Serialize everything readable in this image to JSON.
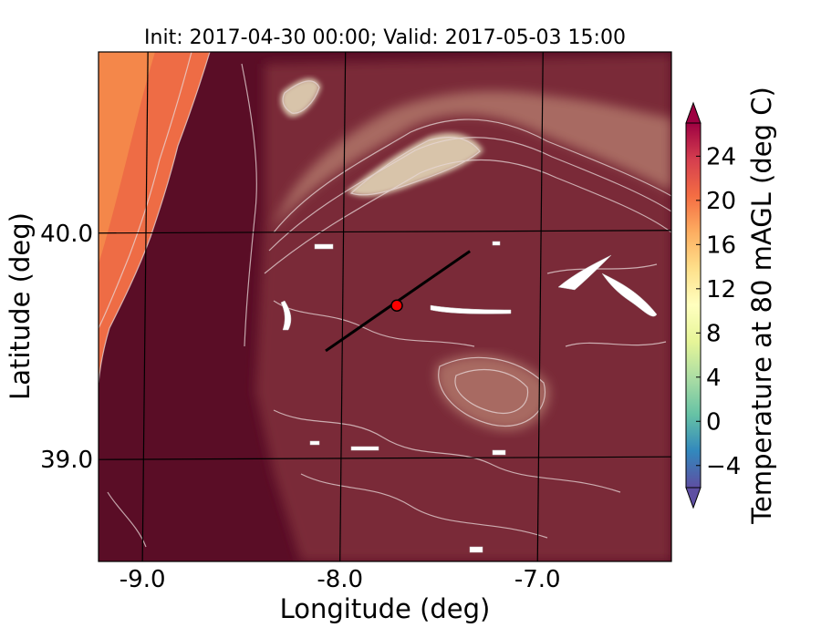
{
  "chart_data": {
    "type": "heatmap",
    "title": "Init: 2017-04-30 00:00; Valid: 2017-05-03 15:00",
    "xlabel": "Longitude (deg)",
    "ylabel": "Latitude (deg)",
    "xlim": [
      -9.25,
      -6.35
    ],
    "ylim": [
      38.55,
      40.8
    ],
    "x_ticks": [
      -9.0,
      -8.0,
      -7.0
    ],
    "x_tick_labels": [
      "-9.0",
      "-8.0",
      "-7.0"
    ],
    "y_ticks": [
      39.0,
      40.0
    ],
    "y_tick_labels": [
      "39.0",
      "40.0"
    ],
    "grid": true,
    "colorbar": {
      "label": "Temperature at 80 mAGL (deg C)",
      "range": [
        -6,
        27
      ],
      "ticks": [
        -4,
        0,
        4,
        8,
        12,
        16,
        20,
        24
      ],
      "tick_labels": [
        "−4",
        "0",
        "4",
        "8",
        "12",
        "16",
        "20",
        "24"
      ],
      "colormap": "Spectral_r",
      "extend": "both",
      "position": "right"
    },
    "field_colors": {
      "lowland": "#5a0d26",
      "midland": "#7a2a38",
      "upland": "#a86a62",
      "ridge": "#d8c4aa",
      "coast": "#ee6c45",
      "coast_warm": "#f4874a"
    },
    "transect": {
      "start": [
        -8.1,
        39.48
      ],
      "end": [
        -7.37,
        39.92
      ],
      "color": "#000000"
    },
    "marker": {
      "lon": -7.74,
      "lat": 39.68,
      "color": "#ff0000"
    }
  }
}
